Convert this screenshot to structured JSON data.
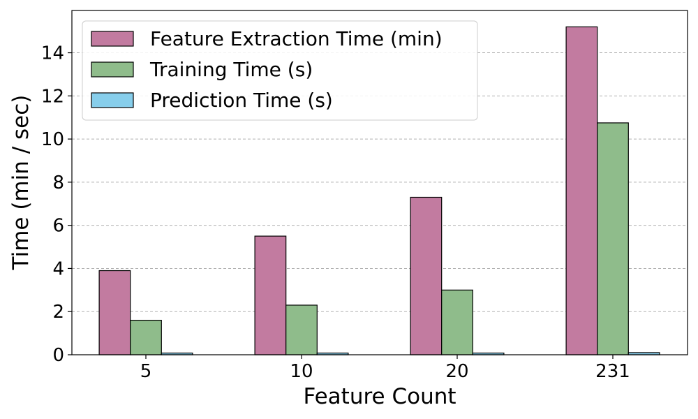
{
  "chart_data": {
    "type": "bar",
    "title": "",
    "xlabel": "Feature Count",
    "ylabel": "Time (min / sec)",
    "categories": [
      "5",
      "10",
      "20",
      "231"
    ],
    "series": [
      {
        "name": "Feature Extraction Time (min)",
        "values": [
          3.9,
          5.5,
          7.3,
          15.2
        ],
        "color": "#c27ba0"
      },
      {
        "name": "Training Time (s)",
        "values": [
          1.6,
          2.3,
          3.0,
          10.75
        ],
        "color": "#8fbc8b"
      },
      {
        "name": "Prediction Time (s)",
        "values": [
          0.08,
          0.08,
          0.08,
          0.1
        ],
        "color": "#87ceeb"
      }
    ],
    "ylim": [
      0,
      15.96
    ],
    "yticks": [
      0,
      2,
      4,
      6,
      8,
      10,
      12,
      14
    ],
    "grid": "y-dashed",
    "legend_position": "top-left"
  }
}
